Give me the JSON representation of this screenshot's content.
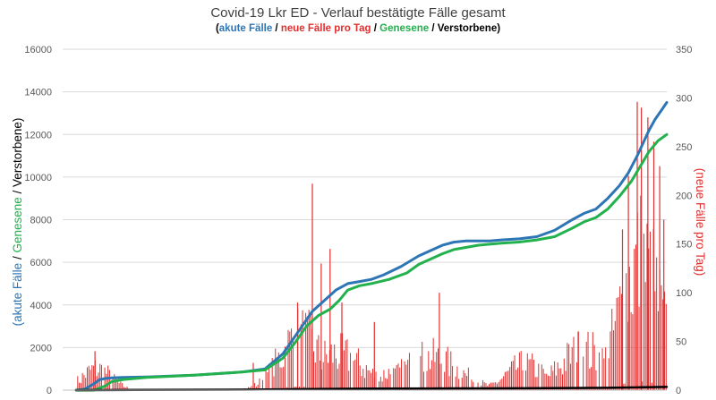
{
  "chart_data": {
    "type": "line",
    "title": "Covid-19 Lkr ED - Verlauf bestätigte Fälle gesamt",
    "subtitle_parts": [
      {
        "text": "(",
        "color": "#000000"
      },
      {
        "text": "akute Fälle",
        "color": "#2E75B6"
      },
      {
        "text": " / ",
        "color": "#000000"
      },
      {
        "text": "neue Fälle pro Tag",
        "color": "#E03030"
      },
      {
        "text": " / ",
        "color": "#000000"
      },
      {
        "text": "Genesene",
        "color": "#22B14C"
      },
      {
        "text": " / ",
        "color": "#000000"
      },
      {
        "text": "Verstorbene)",
        "color": "#000000"
      }
    ],
    "ylabel_parts": [
      {
        "text": "(akute Fälle",
        "color": "#2E75B6"
      },
      {
        "text": " / ",
        "color": "#000000"
      },
      {
        "text": "Genesene",
        "color": "#22B14C"
      },
      {
        "text": " / ",
        "color": "#000000"
      },
      {
        "text": "Verstorbene)",
        "color": "#000000"
      }
    ],
    "y2label": "(neue Fälle pro Tag)",
    "ylim": [
      0,
      16000
    ],
    "yticks": [
      "0",
      "2000",
      "4000",
      "6000",
      "8000",
      "10000",
      "12000",
      "14000",
      "16000"
    ],
    "y2lim": [
      0,
      350
    ],
    "y2ticks": [
      "0",
      "50",
      "100",
      "150",
      "200",
      "250",
      "300",
      "350"
    ],
    "grid": true,
    "x_range": [
      0,
      100
    ],
    "series": [
      {
        "name": "akute Fälle",
        "axis": "left",
        "color": "#2E75B6",
        "x": [
          0,
          1.5,
          3,
          4,
          5,
          6,
          8,
          12,
          20,
          28,
          32,
          35,
          37,
          38.5,
          40,
          42,
          44,
          46,
          48,
          50,
          52,
          55,
          58,
          62,
          64,
          66,
          68,
          70,
          72,
          75,
          78,
          81,
          84,
          86,
          88,
          90,
          92,
          93.5,
          95,
          96,
          97,
          98,
          99,
          100
        ],
        "y": [
          0,
          50,
          300,
          500,
          550,
          580,
          600,
          620,
          700,
          850,
          1000,
          1700,
          2500,
          3100,
          3700,
          4200,
          4700,
          5000,
          5100,
          5200,
          5400,
          5800,
          6300,
          6800,
          6950,
          7000,
          7000,
          7000,
          7050,
          7100,
          7200,
          7500,
          8000,
          8300,
          8500,
          9000,
          9600,
          10200,
          11000,
          11600,
          12200,
          12700,
          13100,
          13500
        ]
      },
      {
        "name": "Genesene",
        "axis": "left",
        "color": "#22B14C",
        "x": [
          0,
          3,
          5,
          6,
          8,
          12,
          20,
          28,
          32,
          35,
          37,
          39,
          41,
          43,
          44.5,
          46,
          48,
          50,
          53,
          56,
          58,
          62,
          64,
          66,
          68,
          70,
          72,
          75,
          78,
          81,
          84,
          86,
          88,
          90,
          92,
          94,
          95.5,
          97,
          98.5,
          100
        ],
        "y": [
          0,
          0,
          200,
          400,
          500,
          600,
          700,
          850,
          950,
          1500,
          2200,
          3000,
          3500,
          3800,
          4200,
          4700,
          4900,
          5000,
          5200,
          5500,
          5900,
          6400,
          6600,
          6700,
          6800,
          6850,
          6900,
          6950,
          7050,
          7200,
          7600,
          7900,
          8100,
          8500,
          9100,
          9800,
          10500,
          11200,
          11700,
          12000
        ]
      },
      {
        "name": "Verstorbene",
        "axis": "left",
        "color": "#000000",
        "x": [
          0,
          10,
          30,
          40,
          50,
          60,
          70,
          80,
          90,
          100
        ],
        "y": [
          0,
          10,
          25,
          50,
          70,
          80,
          85,
          95,
          110,
          150
        ]
      }
    ],
    "bars": {
      "name": "neue Fälle pro Tag",
      "axis": "right",
      "color": "#E03030",
      "peaks": [
        {
          "x": 3.5,
          "width": 3.5,
          "height": 30
        },
        {
          "x": 5.5,
          "width": 1.5,
          "height": 12
        },
        {
          "x": 38,
          "width": 5,
          "height": 75
        },
        {
          "x": 44,
          "width": 7,
          "height": 50
        },
        {
          "x": 53,
          "width": 2.5,
          "height": 25
        },
        {
          "x": 60,
          "width": 7,
          "height": 45
        },
        {
          "x": 76,
          "width": 4.5,
          "height": 35
        },
        {
          "x": 86,
          "width": 6,
          "height": 55
        },
        {
          "x": 95.5,
          "width": 5,
          "height": 180
        }
      ],
      "spikes": [
        {
          "x": 3.2,
          "value": 40
        },
        {
          "x": 30,
          "value": 28
        },
        {
          "x": 37.5,
          "value": 90
        },
        {
          "x": 40,
          "value": 212
        },
        {
          "x": 41.5,
          "value": 130
        },
        {
          "x": 43,
          "value": 145
        },
        {
          "x": 45,
          "value": 90
        },
        {
          "x": 50.5,
          "value": 70
        },
        {
          "x": 61.5,
          "value": 100
        },
        {
          "x": 85,
          "value": 60
        },
        {
          "x": 92.5,
          "value": 165
        },
        {
          "x": 93.5,
          "value": 220
        },
        {
          "x": 95,
          "value": 296
        },
        {
          "x": 95.7,
          "value": 290
        },
        {
          "x": 96.8,
          "value": 280
        },
        {
          "x": 97.8,
          "value": 255
        },
        {
          "x": 98.8,
          "value": 230
        },
        {
          "x": 99.5,
          "value": 175
        }
      ]
    }
  }
}
